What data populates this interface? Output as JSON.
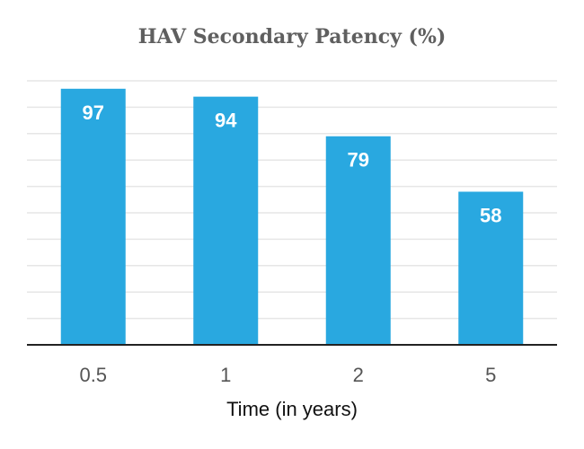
{
  "chart_data": {
    "type": "bar",
    "title": "HAV Secondary Patency (%)",
    "xlabel": "Time (in years)",
    "ylabel": "",
    "categories": [
      "0.5",
      "1",
      "2",
      "5"
    ],
    "values": [
      97,
      94,
      79,
      58
    ],
    "ylim": [
      0,
      100
    ],
    "grid": true,
    "bar_color": "#29A8E0",
    "gridline_color": "#e6e6e6",
    "data_label_color": "#ffffff"
  }
}
